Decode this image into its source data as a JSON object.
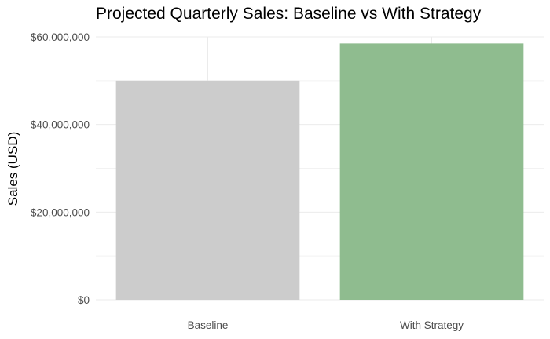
{
  "chart_data": {
    "type": "bar",
    "title": "Projected Quarterly Sales: Baseline vs With Strategy",
    "xlabel": "",
    "ylabel": "Sales (USD)",
    "categories": [
      "Baseline",
      "With Strategy"
    ],
    "values": [
      50000000,
      58500000
    ],
    "bar_colors": [
      "#cccccc",
      "#8fbc8f"
    ],
    "ylim": [
      0,
      60000000
    ],
    "yticks": [
      0,
      20000000,
      40000000,
      60000000
    ],
    "ytick_labels": [
      "$0",
      "$20,000,000",
      "$40,000,000",
      "$60,000,000"
    ],
    "grid": true,
    "legend": "none"
  }
}
